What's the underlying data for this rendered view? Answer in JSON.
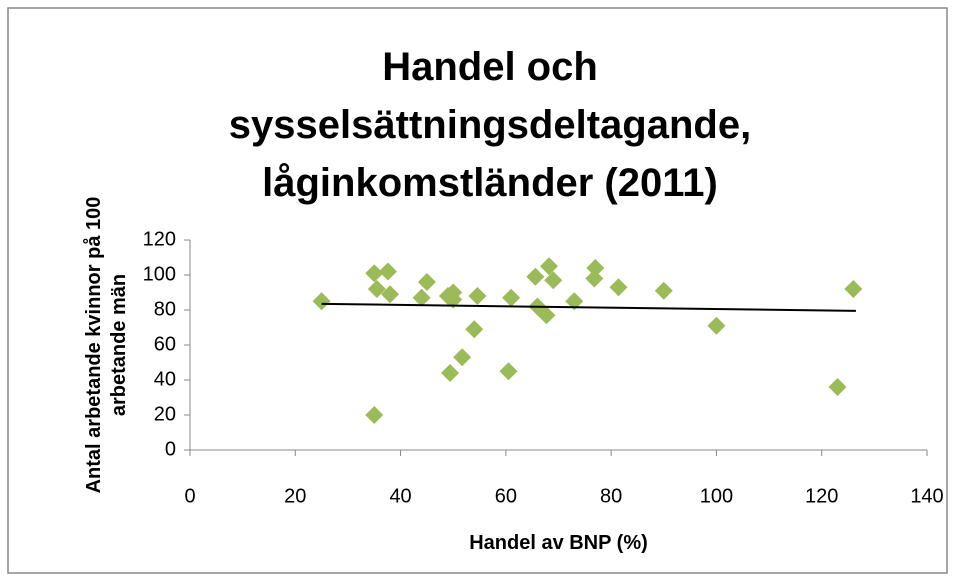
{
  "chart_data": {
    "type": "scatter",
    "title": "Handel och sysselsättningsdeltagande, låginkomstländer (2011)",
    "x_label": "Handel av BNP (%)",
    "y_label": "Antal arbetande kvinnor på 100 arbetande män",
    "color": "#9bbb59",
    "x": [
      25,
      35,
      35.5,
      37.6,
      38,
      35,
      44,
      45,
      49,
      50,
      50,
      49.4,
      51.7,
      54,
      54.6,
      60.5,
      61,
      65.6,
      66,
      67.7,
      68.2,
      69,
      73,
      76.8,
      77,
      81.4,
      90,
      100,
      123,
      126
    ],
    "values": [
      85,
      101,
      92,
      102,
      89,
      20,
      87,
      96,
      88,
      90,
      86,
      44,
      53,
      69,
      88,
      45,
      87,
      99,
      82,
      77,
      105,
      97,
      85,
      98,
      104,
      93,
      91,
      71,
      36,
      92
    ],
    "trendline": {
      "x": [
        25,
        126.5
      ],
      "values": [
        83.5,
        79.5
      ],
      "color": "#000000"
    },
    "xlim": [
      0,
      140
    ],
    "xticks": [
      0,
      20,
      40,
      60,
      80,
      100,
      120,
      140
    ],
    "ylim": [
      0,
      120
    ],
    "yticks": [
      0,
      20,
      40,
      60,
      80,
      100,
      120
    ],
    "grid": false
  }
}
